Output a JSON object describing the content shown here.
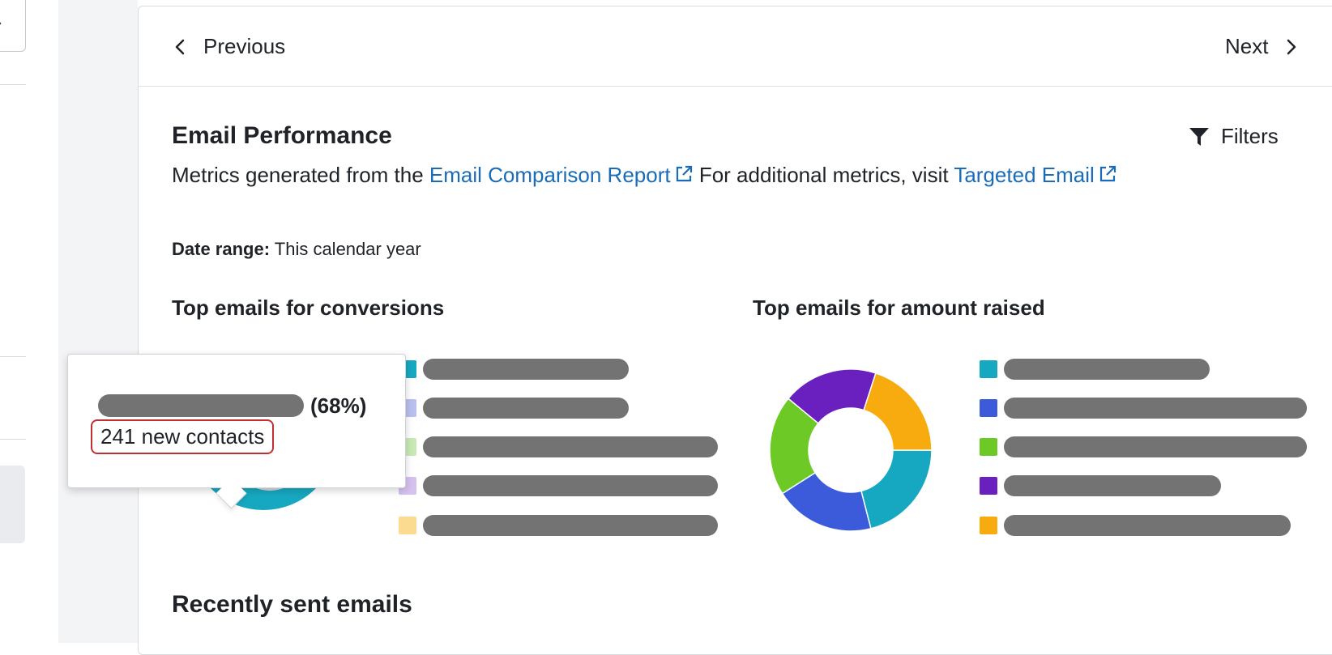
{
  "navigation": {
    "previous_label": "Previous",
    "next_label": "Next"
  },
  "report": {
    "title": "Email Performance",
    "filters_label": "Filters",
    "description_prefix": "Metrics generated from the ",
    "comparison_link": "Email Comparison Report",
    "description_middle": " For additional metrics, visit ",
    "targeted_link": "Targeted Email",
    "date_range_label": "Date range:",
    "date_range_value": "This calendar year"
  },
  "conversions_chart": {
    "title": "Top emails for conversions",
    "legend_colors": [
      "#17a8c1",
      "#b9bff0",
      "#c8e9b5",
      "#d6c2ef",
      "#fbdb8f"
    ]
  },
  "amount_chart": {
    "title": "Top emails for amount raised",
    "legend_colors": [
      "#17a8c1",
      "#3c5bdb",
      "#6dc926",
      "#6a1fbf",
      "#f7ab0f"
    ]
  },
  "tooltip": {
    "percent": "(68%)",
    "value": "241 new contacts"
  },
  "recent": {
    "title": "Recently sent emails"
  },
  "chart_data": [
    {
      "type": "pie",
      "title": "Top emails for amount raised",
      "categories": [
        "",
        "",
        "",
        "",
        ""
      ],
      "values": [
        21,
        20,
        20,
        19,
        20
      ],
      "colors": [
        "#17a8c1",
        "#3c5bdb",
        "#6dc926",
        "#6a1fbf",
        "#f7ab0f"
      ]
    }
  ]
}
